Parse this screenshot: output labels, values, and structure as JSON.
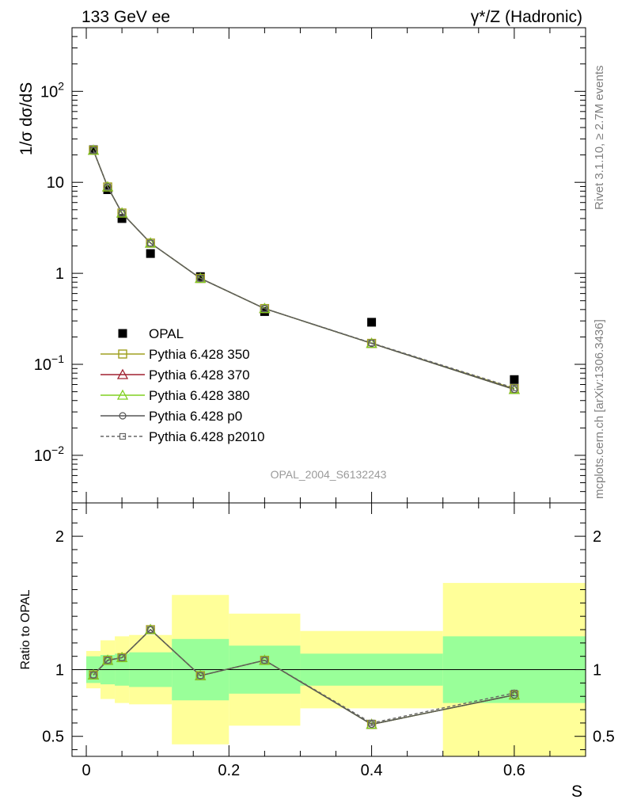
{
  "header": {
    "left": "133 GeV ee",
    "right": "γ*/Z (Hadronic)"
  },
  "side": {
    "rivet": "Rivet 3.1.10, ≥ 2.7M events",
    "mcplots": "mcplots.cern.ch [arXiv:1306.3436]"
  },
  "watermark": "OPAL_2004_S6132243",
  "colors": {
    "opal": "#000000",
    "p350": "#a0a020",
    "p370": "#a02030",
    "p380": "#80d020",
    "p0": "#555555",
    "p2010": "#666666",
    "band_inner": "#99ff99",
    "band_outer": "#ffff99"
  },
  "chart_data": [
    {
      "type": "line",
      "ylabel": "1/σ dσ/dS",
      "xlabel": "",
      "yscale": "log",
      "ylim": [
        0.003,
        500
      ],
      "xlim": [
        -0.02,
        0.7
      ],
      "y_ticks": [
        {
          "v": 0.01,
          "base": "10",
          "exp": "−2"
        },
        {
          "v": 0.1,
          "base": "10",
          "exp": "−1"
        },
        {
          "v": 1,
          "base": "1",
          "exp": ""
        },
        {
          "v": 10,
          "base": "10",
          "exp": ""
        },
        {
          "v": 100,
          "base": "10",
          "exp": "2"
        }
      ],
      "legend_position": "lower-left",
      "data": {
        "name": "OPAL",
        "x": [
          0.01,
          0.03,
          0.05,
          0.09,
          0.16,
          0.25,
          0.4,
          0.6
        ],
        "y": [
          22.8,
          8.3,
          4.0,
          1.65,
          0.92,
          0.38,
          0.29,
          0.068
        ]
      },
      "series": [
        {
          "name": "Pythia 6.428 350",
          "key": "p350",
          "marker": "square",
          "dash": false,
          "x": [
            0.01,
            0.03,
            0.05,
            0.09,
            0.16,
            0.25,
            0.4,
            0.6
          ],
          "y": [
            22.5,
            8.9,
            4.6,
            2.15,
            0.88,
            0.41,
            0.17,
            0.054
          ]
        },
        {
          "name": "Pythia 6.428 370",
          "key": "p370",
          "marker": "triangle",
          "dash": false,
          "x": [
            0.01,
            0.03,
            0.05,
            0.09,
            0.16,
            0.25,
            0.4,
            0.6
          ],
          "y": [
            22.5,
            8.9,
            4.6,
            2.15,
            0.88,
            0.41,
            0.17,
            0.053
          ]
        },
        {
          "name": "Pythia 6.428 380",
          "key": "p380",
          "marker": "triangle",
          "dash": false,
          "x": [
            0.01,
            0.03,
            0.05,
            0.09,
            0.16,
            0.25,
            0.4,
            0.6
          ],
          "y": [
            22.5,
            8.9,
            4.6,
            2.15,
            0.88,
            0.41,
            0.17,
            0.053
          ]
        },
        {
          "name": "Pythia 6.428 p0",
          "key": "p0",
          "marker": "circle",
          "dash": false,
          "x": [
            0.01,
            0.03,
            0.05,
            0.09,
            0.16,
            0.25,
            0.4,
            0.6
          ],
          "y": [
            22.5,
            8.9,
            4.6,
            2.15,
            0.88,
            0.41,
            0.17,
            0.053
          ]
        },
        {
          "name": "Pythia 6.428 p2010",
          "key": "p2010",
          "marker": "square-small",
          "dash": true,
          "x": [
            0.01,
            0.03,
            0.05,
            0.09,
            0.16,
            0.25,
            0.4,
            0.6
          ],
          "y": [
            22.5,
            8.9,
            4.6,
            2.15,
            0.88,
            0.41,
            0.172,
            0.055
          ]
        }
      ]
    },
    {
      "type": "line",
      "ylabel": "Ratio to OPAL",
      "xlabel": "S",
      "ylim": [
        0.35,
        2.25
      ],
      "xlim": [
        -0.02,
        0.7
      ],
      "y_ticks": [
        0.5,
        1,
        2
      ],
      "x_ticks": [
        0,
        0.2,
        0.4,
        0.6
      ],
      "bands": [
        {
          "x0": 0.0,
          "x1": 0.02,
          "inner": [
            0.9,
            1.1
          ],
          "outer": [
            0.86,
            1.14
          ]
        },
        {
          "x0": 0.02,
          "x1": 0.04,
          "inner": [
            0.89,
            1.11
          ],
          "outer": [
            0.78,
            1.22
          ]
        },
        {
          "x0": 0.04,
          "x1": 0.06,
          "inner": [
            0.88,
            1.12
          ],
          "outer": [
            0.75,
            1.25
          ]
        },
        {
          "x0": 0.06,
          "x1": 0.12,
          "inner": [
            0.87,
            1.13
          ],
          "outer": [
            0.74,
            1.26
          ]
        },
        {
          "x0": 0.12,
          "x1": 0.2,
          "inner": [
            0.77,
            1.23
          ],
          "outer": [
            0.44,
            1.56
          ]
        },
        {
          "x0": 0.2,
          "x1": 0.3,
          "inner": [
            0.82,
            1.18
          ],
          "outer": [
            0.58,
            1.42
          ]
        },
        {
          "x0": 0.3,
          "x1": 0.5,
          "inner": [
            0.88,
            1.12
          ],
          "outer": [
            0.71,
            1.29
          ]
        },
        {
          "x0": 0.5,
          "x1": 0.7,
          "inner": [
            0.75,
            1.25
          ],
          "outer": [
            0.35,
            1.65
          ]
        }
      ],
      "series": [
        {
          "name": "Pythia 6.428 350",
          "key": "p350",
          "marker": "square",
          "dash": false,
          "x": [
            0.01,
            0.03,
            0.05,
            0.09,
            0.16,
            0.25,
            0.4,
            0.6
          ],
          "y": [
            0.96,
            1.07,
            1.09,
            1.3,
            0.955,
            1.07,
            0.59,
            0.81
          ]
        },
        {
          "name": "Pythia 6.428 370",
          "key": "p370",
          "marker": "triangle",
          "dash": false,
          "x": [
            0.01,
            0.03,
            0.05,
            0.09,
            0.16,
            0.25,
            0.4,
            0.6
          ],
          "y": [
            0.96,
            1.07,
            1.09,
            1.3,
            0.955,
            1.07,
            0.59,
            0.81
          ]
        },
        {
          "name": "Pythia 6.428 380",
          "key": "p380",
          "marker": "triangle",
          "dash": false,
          "x": [
            0.01,
            0.03,
            0.05,
            0.09,
            0.16,
            0.25,
            0.4,
            0.6
          ],
          "y": [
            0.96,
            1.07,
            1.09,
            1.3,
            0.955,
            1.07,
            0.59,
            0.81
          ]
        },
        {
          "name": "Pythia 6.428 p0",
          "key": "p0",
          "marker": "circle",
          "dash": false,
          "x": [
            0.01,
            0.03,
            0.05,
            0.09,
            0.16,
            0.25,
            0.4,
            0.6
          ],
          "y": [
            0.96,
            1.07,
            1.09,
            1.3,
            0.955,
            1.07,
            0.59,
            0.81
          ]
        },
        {
          "name": "Pythia 6.428 p2010",
          "key": "p2010",
          "marker": "square-small",
          "dash": true,
          "x": [
            0.01,
            0.03,
            0.05,
            0.09,
            0.16,
            0.25,
            0.4,
            0.6
          ],
          "y": [
            0.96,
            1.07,
            1.09,
            1.3,
            0.955,
            1.07,
            0.6,
            0.825
          ]
        }
      ]
    }
  ]
}
